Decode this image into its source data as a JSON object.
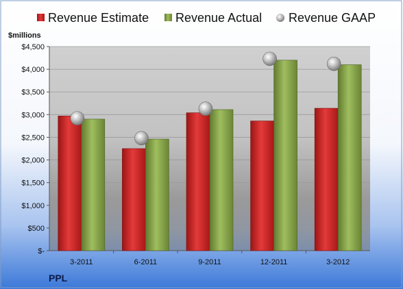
{
  "chart_data": {
    "type": "bar",
    "ylabel": "$millions",
    "company": "PPL",
    "categories": [
      "3-2011",
      "6-2011",
      "9-2011",
      "12-2011",
      "3-2012"
    ],
    "series": [
      {
        "name": "Revenue Estimate",
        "kind": "bar",
        "color": "#d42a2a",
        "values": [
          2970,
          2250,
          3040,
          2860,
          3140
        ]
      },
      {
        "name": "Revenue Actual",
        "kind": "bar",
        "color": "#8fad4f",
        "values": [
          2900,
          2460,
          3110,
          4200,
          4100
        ]
      },
      {
        "name": "Revenue GAAP",
        "kind": "marker",
        "color": "#b8b8b8",
        "values": [
          2920,
          2480,
          3130,
          4230,
          4120
        ]
      }
    ],
    "ylim": [
      0,
      4500
    ],
    "ytick_values": [
      0,
      500,
      1000,
      1500,
      2000,
      2500,
      3000,
      3500,
      4000,
      4500
    ],
    "ytick_labels": [
      "$-",
      "$500",
      "$1,000",
      "$1,500",
      "$2,000",
      "$2,500",
      "$3,000",
      "$3,500",
      "$4,000",
      "$4,500"
    ],
    "legend_position": "top",
    "grid": true
  }
}
